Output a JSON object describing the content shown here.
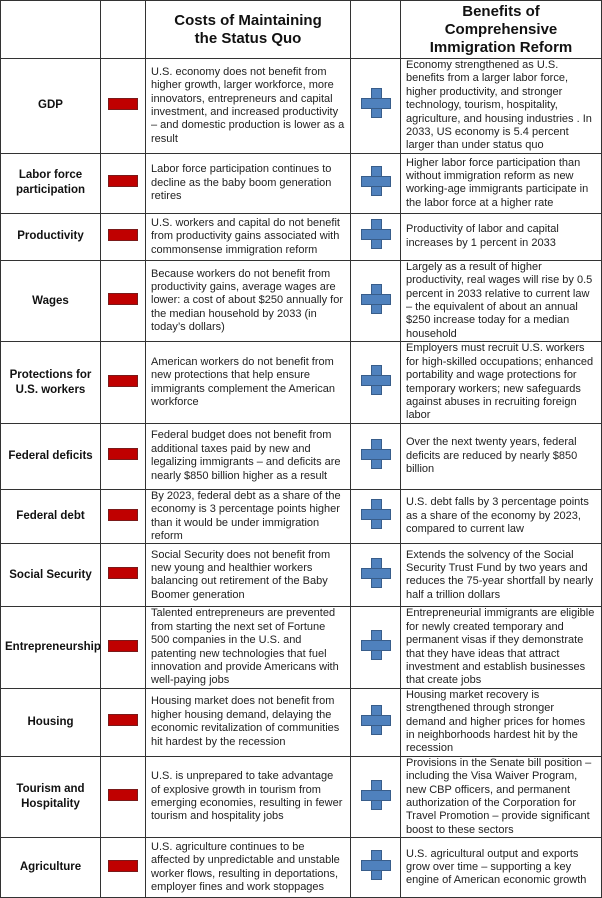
{
  "header": {
    "costs_title": "Costs of Maintaining the Status Quo",
    "benefits_title": "Benefits of Comprehensive Immigration Reform"
  },
  "icons": {
    "cost": "minus-icon",
    "benefit": "plus-icon",
    "cost_color": "#c00000",
    "benefit_color": "#4f81bd"
  },
  "rows": [
    {
      "label": "GDP",
      "cost": "U.S. economy does not benefit from higher growth, larger workforce, more innovators, entrepreneurs and capital investment, and increased productivity – and domestic production is lower as a result",
      "benefit": "Economy strengthened as U.S. benefits from a larger labor force, higher productivity, and stronger technology, tourism, hospitality, agriculture, and housing industries .  In 2033, US economy is 5.4 percent larger than under status quo"
    },
    {
      "label": "Labor force participation",
      "cost": "Labor force participation continues to decline as the baby boom generation retires",
      "benefit": "Higher labor force participation than without immigration reform as new working-age immigrants participate in the labor force at a higher rate"
    },
    {
      "label": "Productivity",
      "cost": "U.S. workers and capital do not benefit from productivity gains associated with commonsense immigration reform",
      "benefit": "Productivity of labor and capital increases by 1 percent in 2033"
    },
    {
      "label": "Wages",
      "cost": "Because workers do not benefit from productivity gains, average wages are lower: a cost of about $250 annually for the median household by 2033 (in today’s dollars)",
      "benefit": "Largely as a result of higher productivity, real wages will rise by 0.5 percent in 2033 relative to current law – the equivalent of about an annual $250 increase  today for a median household"
    },
    {
      "label": "Protections for U.S. workers",
      "cost": "American workers do not benefit from new protections that help ensure immigrants complement the American workforce",
      "benefit": "Employers must recruit U.S. workers for high-skilled occupations; enhanced portability and wage protections for temporary workers; new safeguards against abuses in recruiting foreign labor"
    },
    {
      "label": "Federal deficits",
      "cost": "Federal budget does not benefit from additional taxes paid by new and legalizing immigrants  – and deficits are nearly $850 billion higher as a result",
      "benefit": "Over the next twenty years, federal deficits are reduced by nearly $850 billion"
    },
    {
      "label": "Federal debt",
      "cost": "By 2023, federal debt as a share of the economy is 3 percentage points higher than it would be under immigration reform",
      "benefit": "U.S. debt  falls by 3 percentage points as a share of the economy by 2023, compared to current law"
    },
    {
      "label": "Social Security",
      "cost": "Social Security does not benefit from new young and healthier workers balancing out retirement of the Baby Boomer generation",
      "benefit": "Extends the solvency of the Social Security Trust Fund by two years and reduces the 75-year shortfall by nearly half a trillion dollars"
    },
    {
      "label": "Entrepreneurship",
      "cost": "Talented entrepreneurs are prevented from starting the next set of Fortune 500 companies in the U.S. and patenting new technologies that fuel innovation and provide Americans with well-paying jobs",
      "benefit": "Entrepreneurial immigrants are eligible for newly created temporary and permanent visas if they demonstrate that they have ideas that attract investment and establish businesses that create jobs"
    },
    {
      "label": "Housing",
      "cost": "Housing market does not benefit from higher housing demand, delaying the economic revitalization of communities hit hardest by the recession",
      "benefit": "Housing market recovery is strengthened through stronger demand and higher prices for homes in neighborhoods hardest hit by the recession"
    },
    {
      "label": "Tourism and Hospitality",
      "cost": "U.S. is unprepared to take advantage of explosive growth in tourism from emerging economies, resulting in fewer tourism and hospitality jobs",
      "benefit": "Provisions in the Senate bill position – including the Visa Waiver Program, new CBP officers, and permanent authorization of the Corporation for Travel Promotion – provide significant boost to these sectors"
    },
    {
      "label": "Agriculture",
      "cost": "U.S. agriculture continues to be affected by unpredictable and unstable worker flows, resulting in deportations, employer fines and work stoppages",
      "benefit": "U.S. agricultural output and exports grow over time – supporting a key engine of American economic growth"
    }
  ]
}
